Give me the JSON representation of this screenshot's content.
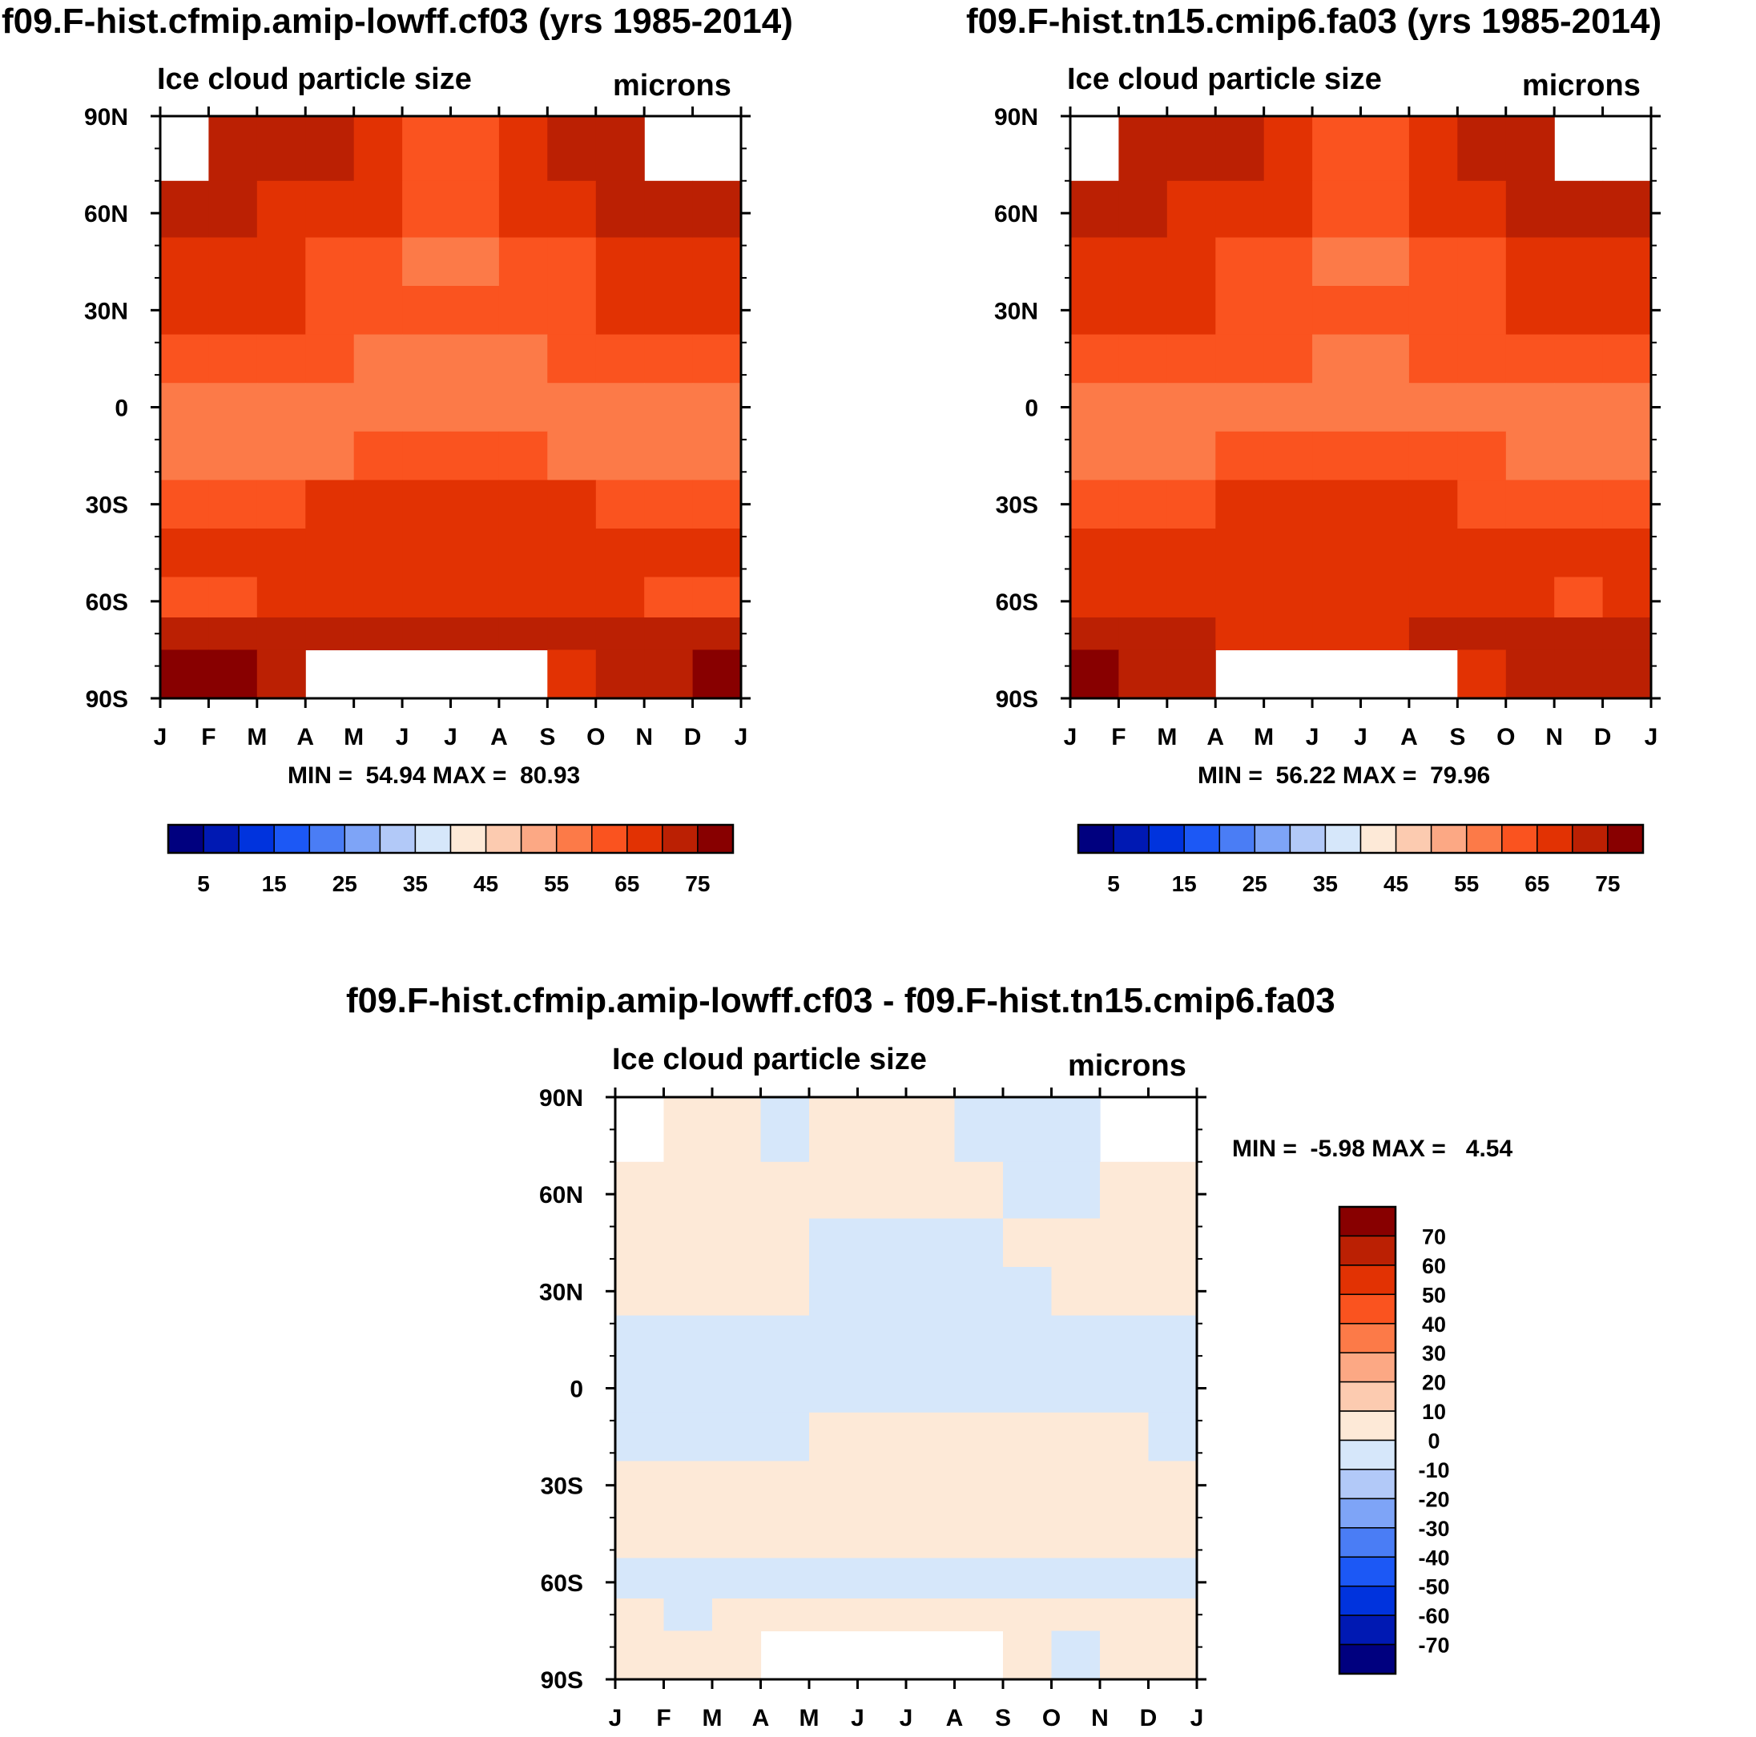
{
  "panels": [
    {
      "title": "f09.F-hist.cfmip.amip-lowff.cf03 (yrs 1985-2014)",
      "subtitle_left": "Ice cloud particle size",
      "subtitle_right": "microns",
      "minmax": "MIN =  54.94 MAX =  80.93"
    },
    {
      "title": "f09.F-hist.tn15.cmip6.fa03 (yrs 1985-2014)",
      "subtitle_left": "Ice cloud particle size",
      "subtitle_right": "microns",
      "minmax": "MIN =  56.22 MAX =  79.96"
    },
    {
      "title": "f09.F-hist.cfmip.amip-lowff.cf03 - f09.F-hist.tn15.cmip6.fa03",
      "subtitle_left": "Ice cloud particle size",
      "subtitle_right": "microns",
      "minmax": "MIN =  -5.98 MAX =   4.54"
    }
  ],
  "chart_data": [
    {
      "type": "heatmap",
      "title": "f09.F-hist.cfmip.amip-lowff.cf03 (yrs 1985-2014)",
      "variable": "Ice cloud particle size",
      "units": "microns",
      "x_tick_labels": [
        "J",
        "F",
        "M",
        "A",
        "M",
        "J",
        "J",
        "A",
        "S",
        "O",
        "N",
        "D",
        "J"
      ],
      "y_tick_labels": [
        "90N",
        "60N",
        "30N",
        "0",
        "30S",
        "60S",
        "90S"
      ],
      "ylim": [
        -90,
        90
      ],
      "months": [
        "Jan",
        "Feb",
        "Mar",
        "Apr",
        "May",
        "Jun",
        "Jul",
        "Aug",
        "Sep",
        "Oct",
        "Nov",
        "Dec"
      ],
      "latitudes": [
        80,
        60,
        45,
        30,
        15,
        0,
        -15,
        -30,
        -45,
        -60,
        -70,
        -80
      ],
      "values": [
        [
          null,
          73,
          73,
          72,
          66,
          64,
          64,
          66,
          72,
          73,
          null,
          null
        ],
        [
          73,
          71,
          69,
          68,
          65,
          63,
          63,
          65,
          68,
          71,
          73,
          73
        ],
        [
          66,
          66,
          66,
          64,
          61,
          57,
          57,
          61,
          64,
          66,
          66,
          66
        ],
        [
          66,
          66,
          66,
          62,
          61,
          60,
          60,
          61,
          62,
          66,
          66,
          66
        ],
        [
          62,
          62,
          62,
          60,
          58,
          57,
          57,
          58,
          60,
          62,
          62,
          62
        ],
        [
          57,
          57,
          57,
          57,
          56,
          56,
          56,
          56,
          57,
          57,
          57,
          57
        ],
        [
          58,
          58,
          58,
          59,
          61,
          61,
          61,
          61,
          59,
          58,
          58,
          58
        ],
        [
          62,
          62,
          64,
          66,
          67,
          67,
          67,
          67,
          66,
          64,
          62,
          62
        ],
        [
          66,
          66,
          66,
          67,
          67,
          67,
          67,
          67,
          67,
          66,
          66,
          66
        ],
        [
          61,
          63,
          65,
          66,
          66,
          66,
          66,
          66,
          66,
          65,
          63,
          61
        ],
        [
          72,
          72,
          71,
          71,
          72,
          72,
          72,
          72,
          71,
          71,
          72,
          72
        ],
        [
          79,
          76,
          73,
          null,
          null,
          null,
          null,
          null,
          66,
          70,
          74,
          78
        ]
      ],
      "colorbar_levels": [
        5,
        10,
        15,
        20,
        25,
        30,
        35,
        40,
        45,
        50,
        55,
        60,
        65,
        70,
        75
      ],
      "colorbar_labels": [
        "5",
        "15",
        "25",
        "35",
        "45",
        "55",
        "65",
        "75"
      ],
      "colors": [
        "#00007f",
        "#0019b3",
        "#0033dd",
        "#1c58f5",
        "#4a7df5",
        "#7ea4f7",
        "#b2c9f8",
        "#d6e7fa",
        "#fde9d7",
        "#fccbb0",
        "#fca884",
        "#fc7a48",
        "#fa531f",
        "#e23203",
        "#bb2003",
        "#880000"
      ],
      "min": 54.94,
      "max": 80.93
    },
    {
      "type": "heatmap",
      "title": "f09.F-hist.tn15.cmip6.fa03 (yrs 1985-2014)",
      "variable": "Ice cloud particle size",
      "units": "microns",
      "x_tick_labels": [
        "J",
        "F",
        "M",
        "A",
        "M",
        "J",
        "J",
        "A",
        "S",
        "O",
        "N",
        "D",
        "J"
      ],
      "y_tick_labels": [
        "90N",
        "60N",
        "30N",
        "0",
        "30S",
        "60S",
        "90S"
      ],
      "ylim": [
        -90,
        90
      ],
      "months": [
        "Jan",
        "Feb",
        "Mar",
        "Apr",
        "May",
        "Jun",
        "Jul",
        "Aug",
        "Sep",
        "Oct",
        "Nov",
        "Dec"
      ],
      "latitudes": [
        80,
        60,
        45,
        30,
        15,
        0,
        -15,
        -30,
        -45,
        -60,
        -70,
        -80
      ],
      "values": [
        [
          null,
          73,
          73,
          72,
          66,
          64,
          64,
          66,
          72,
          73,
          null,
          null
        ],
        [
          73,
          71,
          69,
          67,
          65,
          63,
          63,
          65,
          67,
          71,
          72,
          73
        ],
        [
          66,
          66,
          66,
          64,
          62,
          58,
          58,
          62,
          64,
          66,
          66,
          66
        ],
        [
          66,
          66,
          66,
          64,
          62,
          61,
          61,
          62,
          64,
          66,
          66,
          66
        ],
        [
          62,
          62,
          62,
          61,
          60,
          59,
          59,
          60,
          61,
          62,
          62,
          62
        ],
        [
          58,
          59,
          58,
          58,
          57,
          57,
          57,
          57,
          58,
          58,
          59,
          58
        ],
        [
          58,
          58,
          59,
          60,
          61,
          61,
          61,
          61,
          60,
          59,
          58,
          58
        ],
        [
          62,
          62,
          63,
          65,
          67,
          67,
          67,
          67,
          64,
          63,
          62,
          62
        ],
        [
          66,
          66,
          66,
          66,
          67,
          67,
          67,
          66,
          66,
          66,
          66,
          66
        ],
        [
          66,
          66,
          66,
          66,
          66,
          66,
          66,
          66,
          66,
          66,
          63,
          66
        ],
        [
          71,
          71,
          70,
          69,
          69,
          68,
          69,
          70,
          71,
          72,
          72,
          71
        ],
        [
          75,
          72,
          70,
          null,
          null,
          null,
          null,
          null,
          67,
          70,
          72,
          74
        ]
      ],
      "colorbar_levels": [
        5,
        10,
        15,
        20,
        25,
        30,
        35,
        40,
        45,
        50,
        55,
        60,
        65,
        70,
        75
      ],
      "colorbar_labels": [
        "5",
        "15",
        "25",
        "35",
        "45",
        "55",
        "65",
        "75"
      ],
      "colors": [
        "#00007f",
        "#0019b3",
        "#0033dd",
        "#1c58f5",
        "#4a7df5",
        "#7ea4f7",
        "#b2c9f8",
        "#d6e7fa",
        "#fde9d7",
        "#fccbb0",
        "#fca884",
        "#fc7a48",
        "#fa531f",
        "#e23203",
        "#bb2003",
        "#880000"
      ],
      "min": 56.22,
      "max": 79.96
    },
    {
      "type": "heatmap",
      "title": "f09.F-hist.cfmip.amip-lowff.cf03 - f09.F-hist.tn15.cmip6.fa03",
      "variable": "Ice cloud particle size",
      "units": "microns",
      "x_tick_labels": [
        "J",
        "F",
        "M",
        "A",
        "M",
        "J",
        "J",
        "A",
        "S",
        "O",
        "N",
        "D",
        "J"
      ],
      "y_tick_labels": [
        "90N",
        "60N",
        "30N",
        "0",
        "30S",
        "60S",
        "90S"
      ],
      "ylim": [
        -90,
        90
      ],
      "months": [
        "Jan",
        "Feb",
        "Mar",
        "Apr",
        "May",
        "Jun",
        "Jul",
        "Aug",
        "Sep",
        "Oct",
        "Nov",
        "Dec"
      ],
      "latitudes": [
        80,
        60,
        45,
        30,
        15,
        0,
        -15,
        -30,
        -45,
        -60,
        -70,
        -80
      ],
      "values": [
        [
          null,
          1,
          1,
          -1,
          1,
          1,
          1,
          -1,
          -1,
          -1,
          null,
          null
        ],
        [
          2,
          2,
          2,
          2,
          2,
          2,
          2,
          2,
          -1,
          -1,
          2,
          2
        ],
        [
          2,
          2,
          2,
          2,
          -1,
          -1,
          -1,
          -1,
          2,
          2,
          2,
          2
        ],
        [
          2,
          2,
          2,
          2,
          -1,
          -1,
          -1,
          -1,
          -1,
          2,
          2,
          2
        ],
        [
          -1,
          -1,
          -1,
          -1,
          -1,
          -1,
          -1,
          -1,
          -1,
          -1,
          -1,
          -1
        ],
        [
          -1,
          -1,
          -1,
          -1,
          -1,
          -1,
          -1,
          -1,
          -1,
          -1,
          -1,
          -1
        ],
        [
          -1,
          -1,
          -1,
          -1,
          1,
          1,
          1,
          1,
          1,
          1,
          1,
          -1
        ],
        [
          1,
          1,
          1,
          1,
          1,
          1,
          1,
          1,
          1,
          1,
          1,
          1
        ],
        [
          1,
          1,
          1,
          1,
          1,
          1,
          1,
          1,
          1,
          1,
          1,
          1
        ],
        [
          -1,
          -1,
          -1,
          -1,
          -1,
          -1,
          -1,
          -1,
          -1,
          -1,
          -1,
          -1
        ],
        [
          1,
          -1,
          1,
          1,
          1,
          1,
          1,
          1,
          1,
          1,
          1,
          1
        ],
        [
          1,
          1,
          1,
          null,
          null,
          null,
          null,
          null,
          1,
          -1,
          1,
          1
        ]
      ],
      "colorbar_levels": [
        -70,
        -60,
        -50,
        -40,
        -30,
        -20,
        -10,
        0,
        10,
        20,
        30,
        40,
        50,
        60,
        70
      ],
      "colorbar_labels": [
        "70",
        "60",
        "50",
        "40",
        "30",
        "20",
        "10",
        "0",
        "-10",
        "-20",
        "-30",
        "-40",
        "-50",
        "-60",
        "-70"
      ],
      "colors": [
        "#00007f",
        "#0019b3",
        "#0033dd",
        "#1c58f5",
        "#4a7df5",
        "#7ea4f7",
        "#b2c9f8",
        "#d6e7fa",
        "#fde9d7",
        "#fccbb0",
        "#fca884",
        "#fc7a48",
        "#fa531f",
        "#e23203",
        "#bb2003",
        "#880000"
      ],
      "min": -5.98,
      "max": 4.54
    }
  ]
}
